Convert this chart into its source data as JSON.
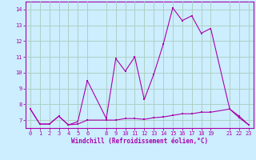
{
  "xlabel": "Windchill (Refroidissement éolien,°C)",
  "background_color": "#cceeff",
  "grid_color": "#aaccbb",
  "line_color": "#aa00aa",
  "xlim": [
    -0.5,
    23.5
  ],
  "ylim": [
    6.5,
    14.5
  ],
  "xticks": [
    0,
    1,
    2,
    3,
    4,
    5,
    6,
    8,
    9,
    10,
    11,
    12,
    13,
    14,
    15,
    16,
    17,
    18,
    19,
    21,
    22,
    23
  ],
  "yticks": [
    7,
    8,
    9,
    10,
    11,
    12,
    13,
    14
  ],
  "line1_x": [
    0,
    1,
    2,
    3,
    4,
    5,
    6,
    8,
    9,
    10,
    11,
    12,
    13,
    14,
    15,
    16,
    17,
    18,
    19,
    21,
    22,
    23
  ],
  "line1_y": [
    7.7,
    6.75,
    6.75,
    7.25,
    6.7,
    6.75,
    7.0,
    7.0,
    7.0,
    7.1,
    7.1,
    7.05,
    7.15,
    7.2,
    7.3,
    7.4,
    7.4,
    7.5,
    7.5,
    7.7,
    7.25,
    6.7
  ],
  "line2_x": [
    0,
    1,
    2,
    3,
    4,
    5,
    6,
    8,
    9,
    10,
    11,
    12,
    13,
    14,
    15,
    16,
    17,
    18,
    19,
    21,
    22,
    23
  ],
  "line2_y": [
    7.7,
    6.75,
    6.75,
    7.25,
    6.7,
    6.9,
    9.5,
    7.1,
    10.9,
    10.1,
    11.0,
    8.3,
    9.9,
    11.8,
    14.1,
    13.3,
    13.6,
    12.5,
    12.8,
    7.7,
    7.15,
    6.7
  ]
}
